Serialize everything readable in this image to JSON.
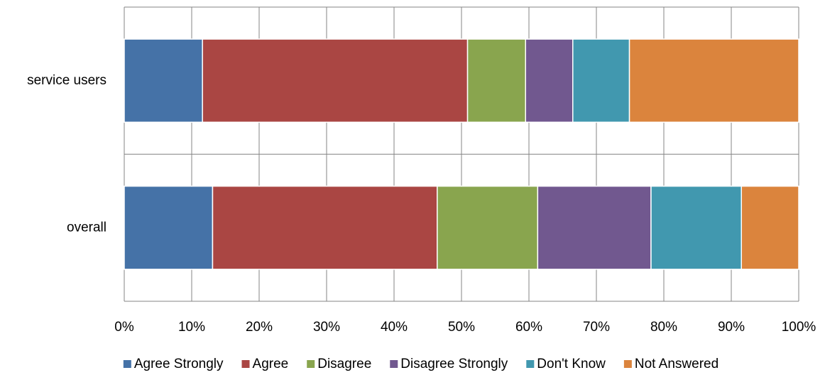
{
  "chart_data": {
    "type": "stacked-bar-horizontal",
    "categories": [
      "service users",
      "overall"
    ],
    "series": [
      {
        "name": "Agree Strongly",
        "color": "#4572a7",
        "values": [
          11.6,
          13.1
        ]
      },
      {
        "name": "Agree",
        "color": "#aa4643",
        "values": [
          39.3,
          33.3
        ]
      },
      {
        "name": "Disagree",
        "color": "#89a54e",
        "values": [
          8.6,
          14.9
        ]
      },
      {
        "name": "Disagree Strongly",
        "color": "#71588f",
        "values": [
          7.0,
          16.8
        ]
      },
      {
        "name": "Don't Know",
        "color": "#4198af",
        "values": [
          8.4,
          13.4
        ]
      },
      {
        "name": "Not Answered",
        "color": "#db843d",
        "values": [
          25.1,
          8.5
        ]
      }
    ],
    "xlim": [
      0,
      100
    ],
    "xticks": [
      {
        "value": 0,
        "label": "0%"
      },
      {
        "value": 10,
        "label": "10%"
      },
      {
        "value": 20,
        "label": "20%"
      },
      {
        "value": 30,
        "label": "30%"
      },
      {
        "value": 40,
        "label": "40%"
      },
      {
        "value": 50,
        "label": "50%"
      },
      {
        "value": 60,
        "label": "60%"
      },
      {
        "value": 70,
        "label": "70%"
      },
      {
        "value": 80,
        "label": "80%"
      },
      {
        "value": 90,
        "label": "90%"
      },
      {
        "value": 100,
        "label": "100%"
      }
    ],
    "grid": true,
    "legend": "bottom"
  }
}
